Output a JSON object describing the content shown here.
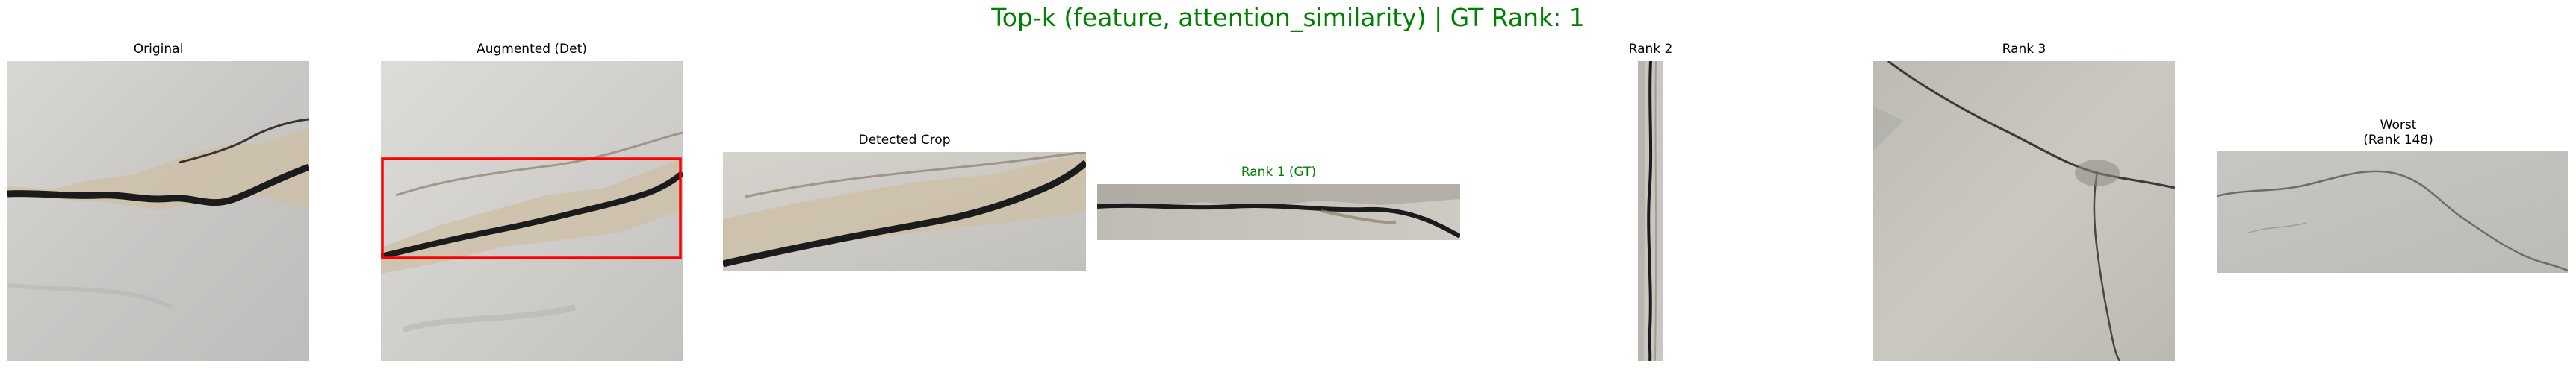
{
  "figure": {
    "title": "Top-k (feature, attention_similarity) | GT Rank: 1",
    "title_color": "#008000"
  },
  "panels": [
    {
      "caption": "Original",
      "kind": "crack-photo"
    },
    {
      "caption": "Augmented (Det)",
      "kind": "crack-photo-with-detection-box",
      "box_color": "#ff0000"
    },
    {
      "caption": "Detected Crop",
      "kind": "crack-photo"
    },
    {
      "caption": "Rank 1 (GT)",
      "kind": "crack-photo",
      "caption_color": "#008000"
    },
    {
      "caption": "Rank 2",
      "kind": "crack-photo"
    },
    {
      "caption": "Rank 3",
      "kind": "crack-photo"
    },
    {
      "caption_line1": "Worst",
      "caption_line2": "(Rank 148)",
      "kind": "crack-photo"
    }
  ]
}
